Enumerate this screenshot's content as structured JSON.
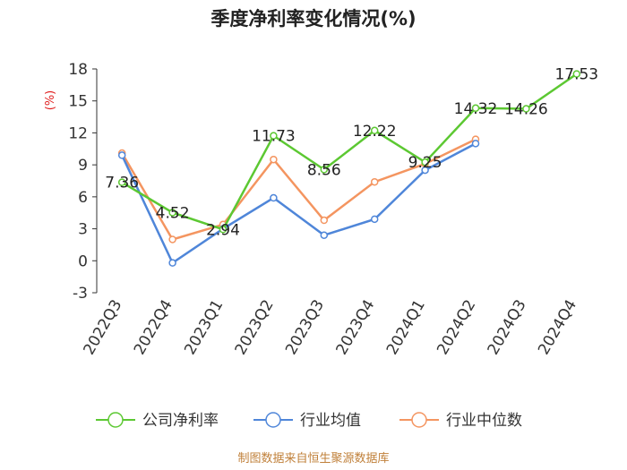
{
  "chart_data": {
    "type": "line",
    "title": "季度净利率变化情况(%)",
    "ylabel": "(%)",
    "xlabel": "",
    "categories": [
      "2022Q3",
      "2022Q4",
      "2023Q1",
      "2023Q2",
      "2023Q3",
      "2023Q4",
      "2024Q1",
      "2024Q2",
      "2024Q3",
      "2024Q4"
    ],
    "yticks": [
      -3,
      0,
      3,
      6,
      9,
      12,
      15,
      18
    ],
    "ylim": [
      -3,
      18
    ],
    "grid": false,
    "legend_position": "bottom",
    "series": [
      {
        "name": "公司净利率",
        "color": "#5cc832",
        "values": [
          7.36,
          4.52,
          2.94,
          11.73,
          8.56,
          12.22,
          9.25,
          14.32,
          14.26,
          17.53
        ],
        "labels": [
          "7.36",
          "4.52",
          "2.94",
          "11.73",
          "8.56",
          "12.22",
          "9.25",
          "14.32",
          "14.26",
          "17.53"
        ]
      },
      {
        "name": "行业均值",
        "color": "#4f86d9",
        "values": [
          9.9,
          -0.2,
          3.0,
          5.9,
          2.4,
          3.9,
          8.5,
          11.0,
          null,
          null
        ]
      },
      {
        "name": "行业中位数",
        "color": "#f49560",
        "values": [
          10.1,
          2.0,
          3.4,
          9.5,
          3.8,
          7.4,
          9.1,
          11.4,
          null,
          null
        ]
      }
    ],
    "source": "制图数据来自恒生聚源数据库"
  }
}
